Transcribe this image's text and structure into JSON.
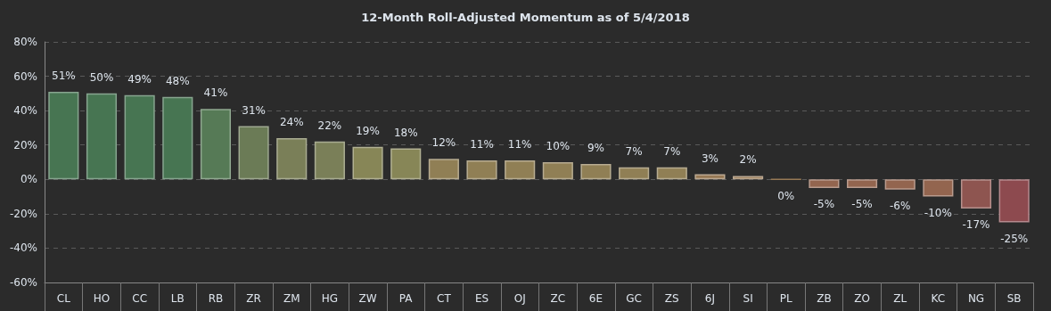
{
  "chart_data": {
    "type": "bar",
    "title": "12-Month Roll-Adjusted Momentum as of 5/4/2018",
    "categories": [
      "CL",
      "HO",
      "CC",
      "LB",
      "RB",
      "ZR",
      "ZM",
      "HG",
      "ZW",
      "PA",
      "CT",
      "ES",
      "OJ",
      "ZC",
      "6E",
      "GC",
      "ZS",
      "6J",
      "SI",
      "PL",
      "ZB",
      "ZO",
      "ZL",
      "KC",
      "NG",
      "SB"
    ],
    "values": [
      51,
      50,
      49,
      48,
      41,
      31,
      24,
      22,
      19,
      18,
      12,
      11,
      11,
      10,
      9,
      7,
      7,
      3,
      2,
      0,
      -5,
      -5,
      -6,
      -10,
      -17,
      -25
    ],
    "value_labels": [
      "51%",
      "50%",
      "49%",
      "48%",
      "41%",
      "31%",
      "24%",
      "22%",
      "19%",
      "18%",
      "12%",
      "11%",
      "11%",
      "10%",
      "9%",
      "7%",
      "7%",
      "3%",
      "2%",
      "0%",
      "-5%",
      "-5%",
      "-6%",
      "-10%",
      "-17%",
      "-25%"
    ],
    "colors": [
      "#477552",
      "#477552",
      "#477552",
      "#477552",
      "#567a56",
      "#6b7b56",
      "#7a7f58",
      "#7a7f58",
      "#878657",
      "#878657",
      "#907f55",
      "#907f55",
      "#907f55",
      "#907f55",
      "#907f55",
      "#907f55",
      "#907f55",
      "#977955",
      "#977955",
      "#977955",
      "#93654f",
      "#93654f",
      "#93654f",
      "#93654f",
      "#8e5550",
      "#8d4a4f"
    ],
    "ylim": [
      -60,
      80
    ],
    "yticks": [
      {
        "value": -60,
        "label": "-60%"
      },
      {
        "value": -40,
        "label": "-40%"
      },
      {
        "value": -20,
        "label": "-20%"
      },
      {
        "value": 0,
        "label": "0%"
      },
      {
        "value": 20,
        "label": "20%"
      },
      {
        "value": 40,
        "label": "40%"
      },
      {
        "value": 60,
        "label": "60%"
      },
      {
        "value": 80,
        "label": "80%"
      }
    ],
    "grid": "y"
  }
}
